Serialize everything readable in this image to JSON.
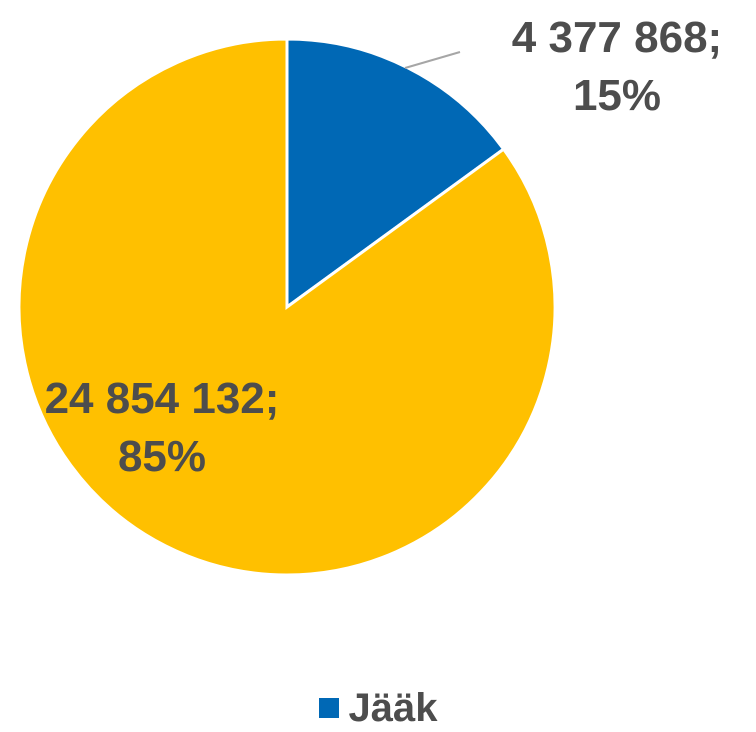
{
  "chart_data": {
    "type": "pie",
    "slices": [
      {
        "value": 4377868,
        "percent": 15,
        "label_line1": "4 377 868;",
        "label_line2": "15%",
        "color": "#0068b5"
      },
      {
        "value": 24854132,
        "percent": 85,
        "label_line1": "24 854 132;",
        "label_line2": "85%",
        "color": "#ffc000"
      }
    ],
    "legend": {
      "position": "bottom",
      "entries": [
        {
          "name": "Jääk",
          "color": "#0068b5"
        }
      ]
    }
  }
}
